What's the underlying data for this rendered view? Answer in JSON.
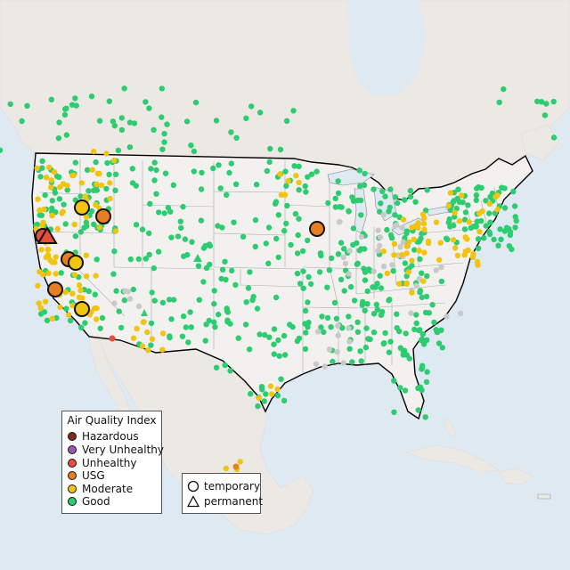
{
  "legend": {
    "title": "Air Quality Index",
    "items": [
      {
        "label": "Hazardous",
        "color": "#7e2b1f"
      },
      {
        "label": "Very Unhealthy",
        "color": "#9b59b6"
      },
      {
        "label": "Unhealthy",
        "color": "#e74c3c"
      },
      {
        "label": "USG",
        "color": "#e67e22"
      },
      {
        "label": "Moderate",
        "color": "#f1c40f"
      },
      {
        "label": "Good",
        "color": "#2ecc71"
      }
    ]
  },
  "site_legend": {
    "temporary": "temporary",
    "permanent": "permanent"
  },
  "colors": {
    "water": "#dfe9f2",
    "land": "#ece8e3",
    "us_land": "#f2f1ef",
    "no_data": "#c9c9c9"
  },
  "icons": {
    "temporary": "circle-icon",
    "permanent": "triangle-icon"
  }
}
